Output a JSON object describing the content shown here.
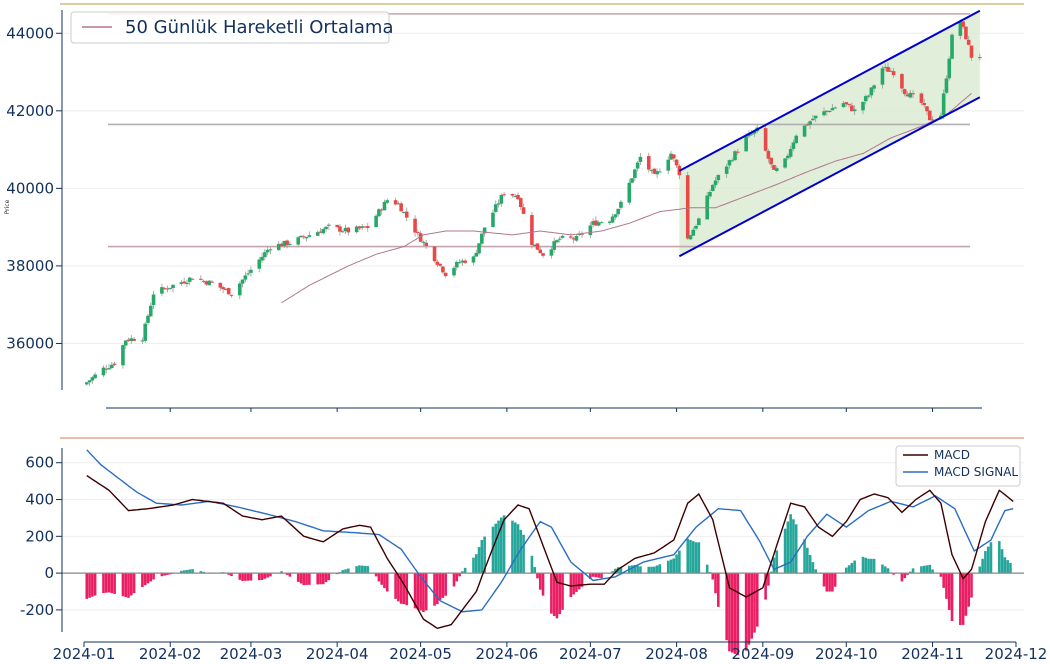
{
  "chart_data": [
    {
      "type": "candlestick",
      "panel": "price",
      "ylabel": "Price",
      "ylim": [
        34800,
        44600
      ],
      "yticks": [
        36000,
        38000,
        40000,
        42000,
        44000
      ],
      "legend": {
        "placement": "top-left",
        "entries": [
          "50 Günlük Hareketli Ortalama"
        ]
      },
      "grid": true,
      "colors": {
        "up": "#26a869",
        "down": "#e84848",
        "ma": "#b37690",
        "hline": "#c4a4ae",
        "hline_gray": "#b0b0b0",
        "channel": "#0000cc",
        "channel_fill": "#d9ead0"
      },
      "horizontal_lines": [
        38500,
        41650,
        44500
      ],
      "channel": {
        "x_start": "2024-08-02",
        "x_end": "2024-11-18",
        "upper": [
          40450,
          44580
        ],
        "lower": [
          38250,
          42350
        ]
      },
      "series_anchors": {
        "close": [
          [
            "2024-01-02",
            35000
          ],
          [
            "2024-01-08",
            35350
          ],
          [
            "2024-01-12",
            35500
          ],
          [
            "2024-01-16",
            36100
          ],
          [
            "2024-01-22",
            36150
          ],
          [
            "2024-01-26",
            37300
          ],
          [
            "2024-02-02",
            37500
          ],
          [
            "2024-02-09",
            37700
          ],
          [
            "2024-02-16",
            37550
          ],
          [
            "2024-02-23",
            37300
          ],
          [
            "2024-03-01",
            37900
          ],
          [
            "2024-03-08",
            38500
          ],
          [
            "2024-03-15",
            38600
          ],
          [
            "2024-03-22",
            38800
          ],
          [
            "2024-03-29",
            39000
          ],
          [
            "2024-04-05",
            38900
          ],
          [
            "2024-04-12",
            39000
          ],
          [
            "2024-04-19",
            39700
          ],
          [
            "2024-04-23",
            39600
          ],
          [
            "2024-04-30",
            38800
          ],
          [
            "2024-05-06",
            38200
          ],
          [
            "2024-05-10",
            37800
          ],
          [
            "2024-05-15",
            38100
          ],
          [
            "2024-05-20",
            38200
          ],
          [
            "2024-05-24",
            39000
          ],
          [
            "2024-05-31",
            39900
          ],
          [
            "2024-06-05",
            39800
          ],
          [
            "2024-06-10",
            38600
          ],
          [
            "2024-06-14",
            38300
          ],
          [
            "2024-06-20",
            38700
          ],
          [
            "2024-06-26",
            38700
          ],
          [
            "2024-07-02",
            39100
          ],
          [
            "2024-07-08",
            39200
          ],
          [
            "2024-07-12",
            39600
          ],
          [
            "2024-07-16",
            40300
          ],
          [
            "2024-07-19",
            40800
          ],
          [
            "2024-07-24",
            40300
          ],
          [
            "2024-07-30",
            40900
          ],
          [
            "2024-08-02",
            40400
          ],
          [
            "2024-08-05",
            38700
          ],
          [
            "2024-08-09",
            39200
          ],
          [
            "2024-08-14",
            40100
          ],
          [
            "2024-08-20",
            40700
          ],
          [
            "2024-08-26",
            41300
          ],
          [
            "2024-08-30",
            41500
          ],
          [
            "2024-09-05",
            40400
          ],
          [
            "2024-09-09",
            40700
          ],
          [
            "2024-09-13",
            41400
          ],
          [
            "2024-09-19",
            41800
          ],
          [
            "2024-09-24",
            42000
          ],
          [
            "2024-09-30",
            42200
          ],
          [
            "2024-10-04",
            42000
          ],
          [
            "2024-10-09",
            42400
          ],
          [
            "2024-10-14",
            43100
          ],
          [
            "2024-10-18",
            43000
          ],
          [
            "2024-10-22",
            42500
          ],
          [
            "2024-10-28",
            42200
          ],
          [
            "2024-10-31",
            41800
          ],
          [
            "2024-11-04",
            41900
          ],
          [
            "2024-11-06",
            42900
          ],
          [
            "2024-11-08",
            43900
          ],
          [
            "2024-11-11",
            44300
          ],
          [
            "2024-11-13",
            43900
          ],
          [
            "2024-11-15",
            43400
          ],
          [
            "2024-11-18",
            43400
          ]
        ],
        "ma50": [
          [
            "2024-03-12",
            37050
          ],
          [
            "2024-03-22",
            37500
          ],
          [
            "2024-04-05",
            38000
          ],
          [
            "2024-04-15",
            38300
          ],
          [
            "2024-04-25",
            38500
          ],
          [
            "2024-05-02",
            38800
          ],
          [
            "2024-05-10",
            38900
          ],
          [
            "2024-05-20",
            38900
          ],
          [
            "2024-06-03",
            38800
          ],
          [
            "2024-06-13",
            38900
          ],
          [
            "2024-06-24",
            38800
          ],
          [
            "2024-07-05",
            38900
          ],
          [
            "2024-07-15",
            39100
          ],
          [
            "2024-07-26",
            39400
          ],
          [
            "2024-08-06",
            39500
          ],
          [
            "2024-08-15",
            39500
          ],
          [
            "2024-08-26",
            39800
          ],
          [
            "2024-09-06",
            40100
          ],
          [
            "2024-09-16",
            40400
          ],
          [
            "2024-09-27",
            40700
          ],
          [
            "2024-10-07",
            40900
          ],
          [
            "2024-10-17",
            41300
          ],
          [
            "2024-10-28",
            41600
          ],
          [
            "2024-11-06",
            41900
          ],
          [
            "2024-11-15",
            42450
          ]
        ]
      }
    },
    {
      "type": "line+bar",
      "panel": "macd",
      "ylim": [
        -320,
        680
      ],
      "yticks": [
        -200,
        0,
        200,
        400,
        600
      ],
      "x_ticks": [
        "2024-01",
        "2024-02",
        "2024-03",
        "2024-04",
        "2024-05",
        "2024-06",
        "2024-07",
        "2024-08",
        "2024-09",
        "2024-10",
        "2024-11",
        "2024-12"
      ],
      "legend": {
        "placement": "top-right",
        "entries": [
          "MACD",
          "MACD SIGNAL"
        ]
      },
      "grid": true,
      "colors": {
        "macd": "#3d0000",
        "signal": "#2b6cc4",
        "hist_pos": "#26a69a",
        "hist_neg": "#e91e63",
        "zero": "#888888"
      },
      "series": [
        {
          "name": "MACD",
          "anchors": [
            [
              "2024-01-02",
              530
            ],
            [
              "2024-01-10",
              450
            ],
            [
              "2024-01-17",
              340
            ],
            [
              "2024-01-24",
              350
            ],
            [
              "2024-02-02",
              370
            ],
            [
              "2024-02-09",
              400
            ],
            [
              "2024-02-20",
              380
            ],
            [
              "2024-02-27",
              310
            ],
            [
              "2024-03-05",
              290
            ],
            [
              "2024-03-12",
              310
            ],
            [
              "2024-03-20",
              200
            ],
            [
              "2024-03-27",
              170
            ],
            [
              "2024-04-03",
              240
            ],
            [
              "2024-04-09",
              260
            ],
            [
              "2024-04-13",
              250
            ],
            [
              "2024-04-19",
              80
            ],
            [
              "2024-04-25",
              -60
            ],
            [
              "2024-05-02",
              -250
            ],
            [
              "2024-05-07",
              -300
            ],
            [
              "2024-05-12",
              -280
            ],
            [
              "2024-05-16",
              -200
            ],
            [
              "2024-05-21",
              -100
            ],
            [
              "2024-05-26",
              100
            ],
            [
              "2024-05-31",
              290
            ],
            [
              "2024-06-05",
              370
            ],
            [
              "2024-06-09",
              350
            ],
            [
              "2024-06-14",
              150
            ],
            [
              "2024-06-19",
              -50
            ],
            [
              "2024-06-24",
              -70
            ],
            [
              "2024-07-01",
              -60
            ],
            [
              "2024-07-06",
              -60
            ],
            [
              "2024-07-11",
              20
            ],
            [
              "2024-07-17",
              80
            ],
            [
              "2024-07-24",
              110
            ],
            [
              "2024-07-31",
              180
            ],
            [
              "2024-08-05",
              380
            ],
            [
              "2024-08-09",
              430
            ],
            [
              "2024-08-14",
              290
            ],
            [
              "2024-08-20",
              -80
            ],
            [
              "2024-08-26",
              -130
            ],
            [
              "2024-09-01",
              -80
            ],
            [
              "2024-09-06",
              150
            ],
            [
              "2024-09-11",
              380
            ],
            [
              "2024-09-16",
              360
            ],
            [
              "2024-09-21",
              250
            ],
            [
              "2024-09-26",
              200
            ],
            [
              "2024-10-01",
              280
            ],
            [
              "2024-10-06",
              400
            ],
            [
              "2024-10-11",
              430
            ],
            [
              "2024-10-16",
              410
            ],
            [
              "2024-10-21",
              330
            ],
            [
              "2024-10-26",
              400
            ],
            [
              "2024-10-31",
              450
            ],
            [
              "2024-11-04",
              380
            ],
            [
              "2024-11-08",
              100
            ],
            [
              "2024-11-12",
              -30
            ],
            [
              "2024-11-15",
              20
            ],
            [
              "2024-11-20",
              280
            ],
            [
              "2024-11-25",
              450
            ],
            [
              "2024-11-30",
              390
            ]
          ]
        },
        {
          "name": "MACD SIGNAL",
          "anchors": [
            [
              "2024-01-02",
              670
            ],
            [
              "2024-01-07",
              590
            ],
            [
              "2024-01-13",
              520
            ],
            [
              "2024-01-20",
              440
            ],
            [
              "2024-01-27",
              380
            ],
            [
              "2024-02-05",
              370
            ],
            [
              "2024-02-15",
              390
            ],
            [
              "2024-02-25",
              360
            ],
            [
              "2024-03-07",
              320
            ],
            [
              "2024-03-17",
              280
            ],
            [
              "2024-03-27",
              230
            ],
            [
              "2024-04-07",
              220
            ],
            [
              "2024-04-16",
              210
            ],
            [
              "2024-04-24",
              130
            ],
            [
              "2024-05-01",
              -20
            ],
            [
              "2024-05-08",
              -150
            ],
            [
              "2024-05-16",
              -210
            ],
            [
              "2024-05-23",
              -200
            ],
            [
              "2024-05-30",
              -50
            ],
            [
              "2024-06-06",
              130
            ],
            [
              "2024-06-13",
              280
            ],
            [
              "2024-06-17",
              250
            ],
            [
              "2024-06-24",
              60
            ],
            [
              "2024-07-02",
              -40
            ],
            [
              "2024-07-10",
              -20
            ],
            [
              "2024-07-20",
              60
            ],
            [
              "2024-07-31",
              100
            ],
            [
              "2024-08-08",
              250
            ],
            [
              "2024-08-16",
              350
            ],
            [
              "2024-08-24",
              340
            ],
            [
              "2024-08-31",
              170
            ],
            [
              "2024-09-05",
              20
            ],
            [
              "2024-09-11",
              60
            ],
            [
              "2024-09-17",
              200
            ],
            [
              "2024-09-24",
              320
            ],
            [
              "2024-10-01",
              250
            ],
            [
              "2024-10-09",
              340
            ],
            [
              "2024-10-17",
              390
            ],
            [
              "2024-10-25",
              360
            ],
            [
              "2024-11-02",
              420
            ],
            [
              "2024-11-09",
              350
            ],
            [
              "2024-11-16",
              120
            ],
            [
              "2024-11-22",
              180
            ],
            [
              "2024-11-27",
              340
            ],
            [
              "2024-11-30",
              350
            ]
          ]
        }
      ]
    }
  ]
}
